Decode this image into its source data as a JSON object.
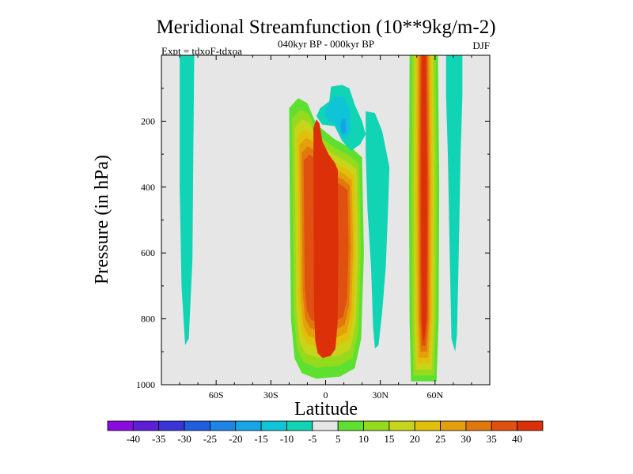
{
  "chart_data": {
    "type": "heatmap",
    "title": "Meridional Streamfunction (10**9kg/m-2)",
    "subtitle": "040kyr BP - 000kyr BP",
    "left_label": "Expt = tdxoF-tdxoa",
    "right_label": "DJF",
    "xlabel": "Latitude",
    "ylabel": "Pressure (in hPa)",
    "xlim": [
      -90,
      90
    ],
    "ylim": [
      1000,
      0
    ],
    "x_ticks": [
      {
        "value": -60,
        "label": "60S"
      },
      {
        "value": -30,
        "label": "30S"
      },
      {
        "value": 0,
        "label": "0"
      },
      {
        "value": 30,
        "label": "30N"
      },
      {
        "value": 60,
        "label": "60N"
      }
    ],
    "y_ticks": [
      {
        "value": 200,
        "label": "200"
      },
      {
        "value": 400,
        "label": "400"
      },
      {
        "value": 600,
        "label": "600"
      },
      {
        "value": 800,
        "label": "800"
      },
      {
        "value": 1000,
        "label": "1000"
      }
    ],
    "background_color": "#e6e6e6",
    "colorbar": {
      "levels": [
        "-40",
        "-35",
        "-30",
        "-25",
        "-20",
        "-15",
        "-10",
        "-5",
        "5",
        "10",
        "15",
        "20",
        "25",
        "30",
        "35",
        "40"
      ],
      "colors": [
        "#8a0be0",
        "#5d1ed8",
        "#3a35d6",
        "#1f5fdf",
        "#1f84e6",
        "#16a6e6",
        "#10c4d8",
        "#10d4b4",
        "#e6e6e6",
        "#5ee030",
        "#96da1e",
        "#c8d41a",
        "#e0c00a",
        "#e4a00c",
        "#e0780e",
        "#e05010",
        "#dc3008"
      ]
    },
    "features": [
      {
        "name": "southern-cell",
        "lat_range": [
          -80,
          -72
        ],
        "pressure_range": [
          0,
          880
        ],
        "peak_value": -10
      },
      {
        "name": "tropical-cell",
        "lat_range": [
          -20,
          20
        ],
        "pressure_range": [
          130,
          980
        ],
        "peak_value": 40
      },
      {
        "name": "upper-negative-cell",
        "lat_range": [
          -5,
          20
        ],
        "pressure_range": [
          90,
          290
        ],
        "peak_value": -20
      },
      {
        "name": "subtropical-neg-cell",
        "lat_range": [
          20,
          35
        ],
        "pressure_range": [
          160,
          890
        ],
        "peak_value": -10
      },
      {
        "name": "midlat-positive-cell",
        "lat_range": [
          46,
          62
        ],
        "pressure_range": [
          0,
          990
        ],
        "peak_value": 40
      },
      {
        "name": "highlat-neg-cell",
        "lat_range": [
          66,
          76
        ],
        "pressure_range": [
          0,
          900
        ],
        "peak_value": -10
      }
    ]
  }
}
